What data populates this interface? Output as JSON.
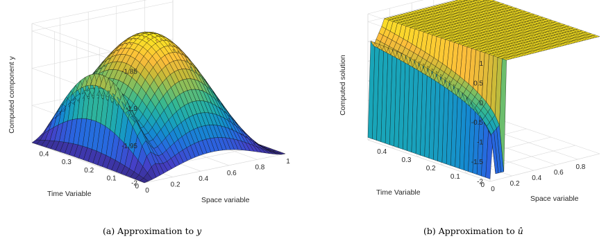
{
  "charts": [
    {
      "type": "surface",
      "zlabel": "Computed component y",
      "xlabel": "Space variable",
      "ylabel": "Time Variable",
      "x_ticks": [
        "0",
        "0.2",
        "0.4",
        "0.6",
        "0.8",
        "1"
      ],
      "y_ticks": [
        "0",
        "0.1",
        "0.2",
        "0.3",
        "0.4"
      ],
      "z_ticks": [
        "-2",
        "-1.95",
        "-1.9",
        "-1.85"
      ],
      "caption_prefix": "(a)  Approximation to ",
      "caption_var": "y"
    },
    {
      "type": "surface",
      "zlabel": "Computed solution",
      "xlabel": "Space variable",
      "ylabel": "Time Variable",
      "x_ticks": [
        "0",
        "0.2",
        "0.4",
        "0.6",
        "0.8"
      ],
      "y_ticks": [
        "0",
        "0.1",
        "0.2",
        "0.3",
        "0.4"
      ],
      "z_ticks": [
        "-2",
        "-1.5",
        "-1",
        "-0.5",
        "0",
        "0.5",
        "1"
      ],
      "caption_prefix": "(b)  Approximation to ",
      "caption_var": "û"
    }
  ],
  "chart_data": [
    {
      "type": "surface",
      "title": "",
      "xlabel": "Space variable",
      "ylabel": "Time Variable",
      "zlabel": "Computed component y",
      "xlim": [
        0,
        1
      ],
      "ylim": [
        0,
        0.5
      ],
      "zlim": [
        -2,
        -1.84
      ],
      "colormap": "parula",
      "grid": true
    },
    {
      "type": "surface",
      "title": "",
      "xlabel": "Space variable",
      "ylabel": "Time Variable",
      "zlabel": "Computed solution",
      "xlim": [
        0,
        1
      ],
      "ylim": [
        0,
        0.5
      ],
      "zlim": [
        -2,
        1.2
      ],
      "colormap": "parula",
      "grid": true
    }
  ]
}
